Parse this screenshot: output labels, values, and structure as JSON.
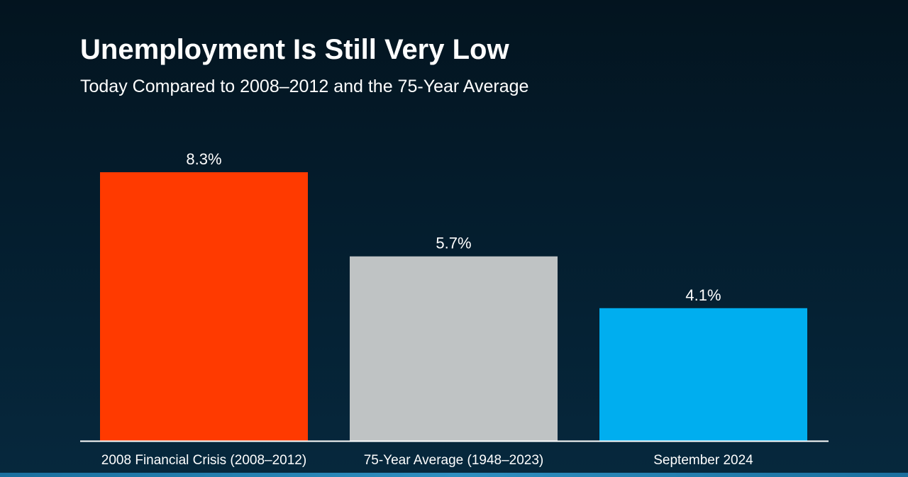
{
  "chart_data": {
    "type": "bar",
    "title": "Unemployment Is Still Very Low",
    "subtitle": "Today Compared to 2008–2012 and the 75-Year Average",
    "categories": [
      "2008 Financial Crisis (2008–2012)",
      "75-Year Average (1948–2023)",
      "September 2024"
    ],
    "values": [
      8.3,
      5.7,
      4.1
    ],
    "value_labels": [
      "8.3%",
      "5.7%",
      "4.1%"
    ],
    "colors": [
      "#ff3a00",
      "#bfc3c4",
      "#00aeef"
    ],
    "xlabel": "",
    "ylabel": "",
    "ylim": [
      0,
      8.3
    ],
    "grid": false,
    "legend": "none"
  },
  "theme": {
    "text_color": "#ffffff",
    "axis_color": "#ffffff"
  }
}
